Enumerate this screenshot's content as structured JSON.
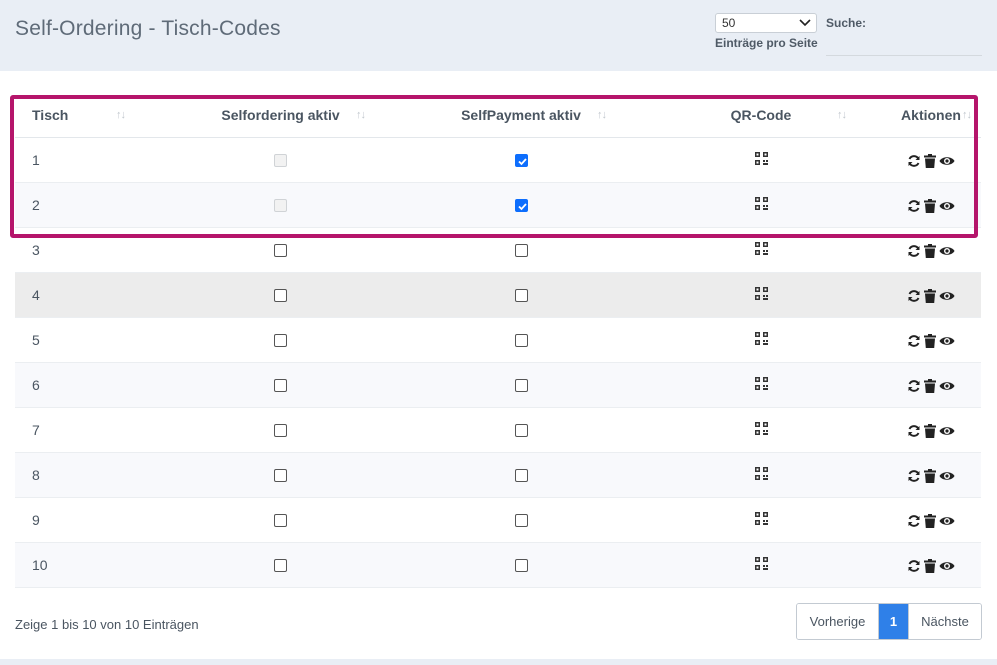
{
  "header": {
    "title": "Self-Ordering - Tisch-Codes",
    "per_page_value": "50",
    "per_page_label": "Einträge pro Seite",
    "search_label": "Suche:",
    "search_value": ""
  },
  "table": {
    "columns": [
      "Tisch",
      "Selfordering aktiv",
      "SelfPayment aktiv",
      "QR-Code",
      "Aktionen"
    ],
    "sort_icon": "↑↓",
    "rows": [
      {
        "tisch": "1",
        "selfordering": "disabled",
        "selfpayment": true
      },
      {
        "tisch": "2",
        "selfordering": "disabled",
        "selfpayment": true
      },
      {
        "tisch": "3",
        "selfordering": false,
        "selfpayment": false
      },
      {
        "tisch": "4",
        "selfordering": false,
        "selfpayment": false
      },
      {
        "tisch": "5",
        "selfordering": false,
        "selfpayment": false
      },
      {
        "tisch": "6",
        "selfordering": false,
        "selfpayment": false
      },
      {
        "tisch": "7",
        "selfordering": false,
        "selfpayment": false
      },
      {
        "tisch": "8",
        "selfordering": false,
        "selfpayment": false
      },
      {
        "tisch": "9",
        "selfordering": false,
        "selfpayment": false
      },
      {
        "tisch": "10",
        "selfordering": false,
        "selfpayment": false
      }
    ],
    "hover_row_index": 3
  },
  "footer": {
    "info": "Zeige 1 bis 10 von 10 Einträgen",
    "prev_label": "Vorherige",
    "current_page": "1",
    "next_label": "Nächste"
  },
  "icons": {
    "qr": "qrcode-icon",
    "refresh": "refresh-icon",
    "delete": "trash-icon",
    "view": "eye-icon",
    "dropdown": "chevron-down-icon"
  },
  "colors": {
    "header_bg": "#e9eef5",
    "highlight_border": "#b5156b",
    "checkbox_checked": "#0d6efd",
    "pager_active": "#2f80e8"
  }
}
